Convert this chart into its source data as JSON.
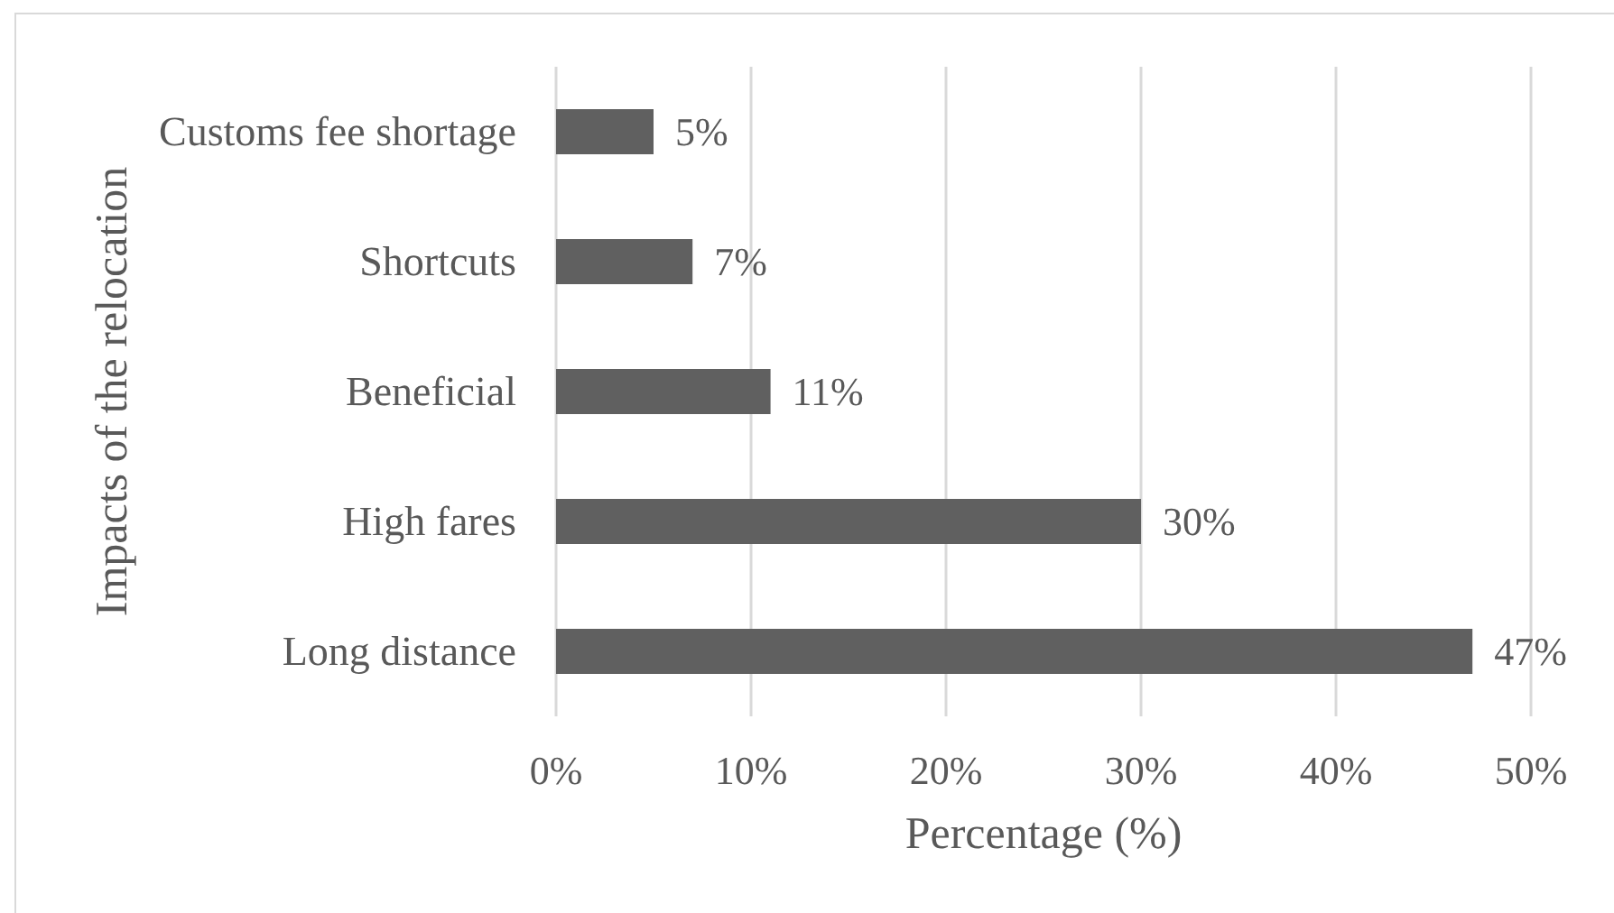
{
  "chart_data": {
    "type": "bar",
    "orientation": "horizontal",
    "categories": [
      "Customs fee shortage",
      "Shortcuts",
      "Beneficial",
      "High fares",
      "Long distance"
    ],
    "values": [
      5,
      7,
      11,
      30,
      47
    ],
    "value_labels": [
      "5%",
      "7%",
      "11%",
      "30%",
      "47%"
    ],
    "color": "#606060",
    "xlabel": "Percentage (%)",
    "ylabel": "Impacts of the relocation",
    "xlim": [
      0,
      50
    ],
    "xticks": [
      {
        "value": 0,
        "label": "0%"
      },
      {
        "value": 10,
        "label": "10%"
      },
      {
        "value": 20,
        "label": "20%"
      },
      {
        "value": 30,
        "label": "30%"
      },
      {
        "value": 40,
        "label": "40%"
      },
      {
        "value": 50,
        "label": "50%"
      }
    ],
    "grid": "x"
  }
}
